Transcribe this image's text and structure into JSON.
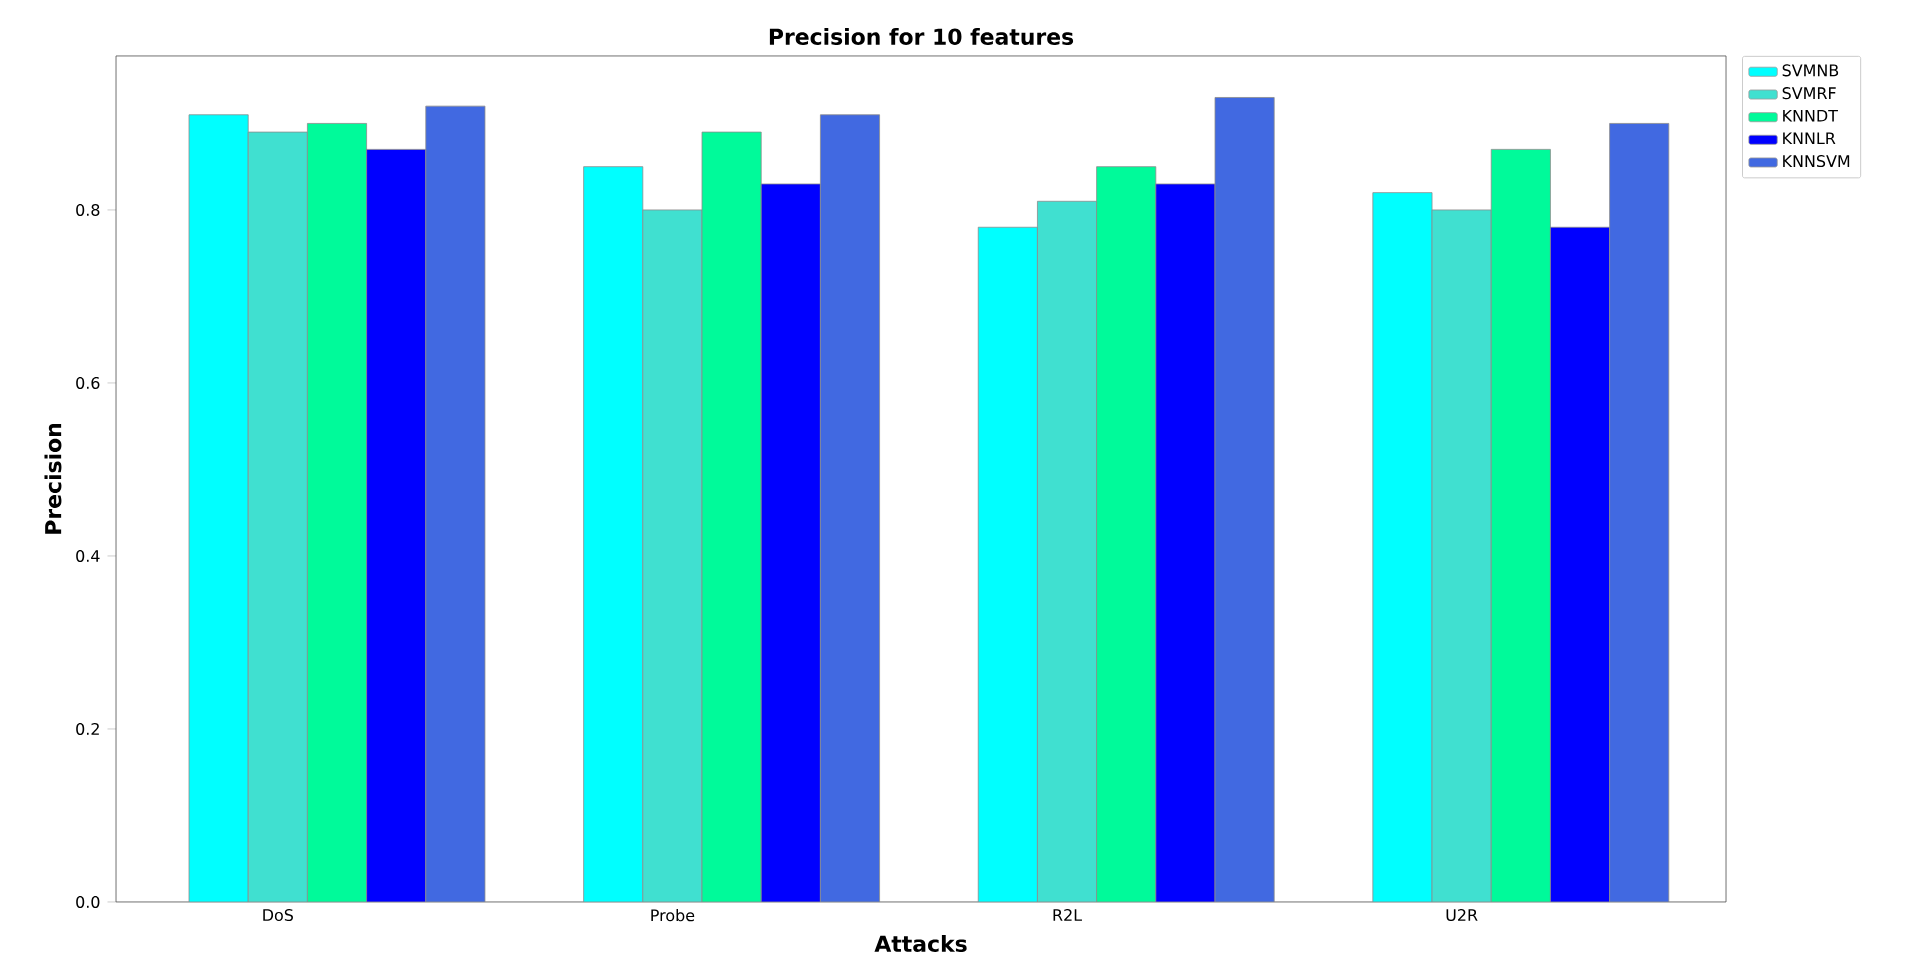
{
  "chart_data": {
    "type": "bar",
    "title": "Precision for 10 features",
    "xlabel": "Attacks",
    "ylabel": "Precision",
    "categories": [
      "DoS",
      "Probe",
      "R2L",
      "U2R"
    ],
    "series": [
      {
        "name": "SVMNB",
        "color": "#00ffff",
        "values": [
          0.91,
          0.85,
          0.78,
          0.82
        ]
      },
      {
        "name": "SVMRF",
        "color": "#40e0d0",
        "values": [
          0.89,
          0.8,
          0.81,
          0.8
        ]
      },
      {
        "name": "KNNDT",
        "color": "#00fa9a",
        "values": [
          0.9,
          0.89,
          0.85,
          0.87
        ]
      },
      {
        "name": "KNNLR",
        "color": "#0000ff",
        "values": [
          0.87,
          0.83,
          0.83,
          0.78
        ]
      },
      {
        "name": "KNNSVM",
        "color": "#4169e1",
        "values": [
          0.92,
          0.91,
          0.93,
          0.9
        ]
      }
    ],
    "ylim": [
      0,
      0.978
    ],
    "yticks": [
      {
        "value": 0,
        "label": "0.0"
      },
      {
        "value": 0.2,
        "label": "0.2"
      },
      {
        "value": 0.4,
        "label": "0.4"
      },
      {
        "value": 0.6,
        "label": "0.6"
      },
      {
        "value": 0.8,
        "label": "0.8"
      }
    ],
    "legend": "top right"
  }
}
